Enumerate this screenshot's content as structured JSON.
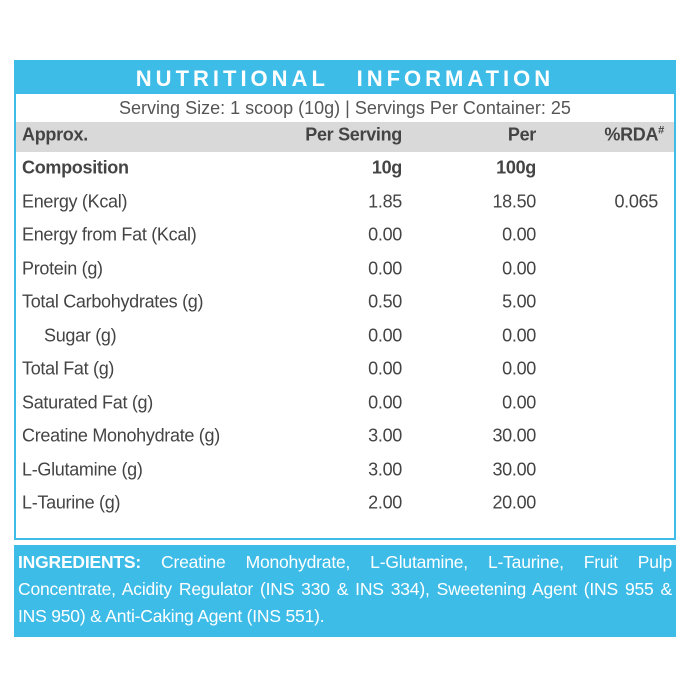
{
  "header": {
    "title": "NUTRITIONAL INFORMATION",
    "serving": "Serving Size: 1 scoop (10g) | Servings Per Container: 25"
  },
  "table": {
    "columns": [
      "Approx.",
      "Per Serving",
      "Per",
      "%RDA"
    ],
    "rda_mark": "#",
    "rows": [
      [
        "Composition",
        "10g",
        "100g"
      ],
      [
        "Energy (Kcal)",
        "1.85",
        "18.50",
        "0.065"
      ],
      [
        "Energy from Fat (Kcal)",
        "0.00",
        "0.00"
      ],
      [
        "Protein (g)",
        "0.00",
        "0.00"
      ],
      [
        "Total Carbohydrates (g)",
        "0.50",
        "5.00"
      ],
      [
        "Sugar (g)",
        "0.00",
        "0.00"
      ],
      [
        "Total Fat (g)",
        "0.00",
        "0.00"
      ],
      [
        "Saturated Fat (g)",
        "0.00",
        "0.00"
      ],
      [
        "Creatine Monohydrate (g)",
        "3.00",
        "30.00"
      ],
      [
        "L-Glutamine (g)",
        "3.00",
        "30.00"
      ],
      [
        "L-Taurine (g)",
        "2.00",
        "20.00"
      ]
    ]
  },
  "ingredients": {
    "label": "INGREDIENTS:",
    "text": "Creatine Monohydrate, L-Glutamine, L-Taurine, Fruit Pulp Concentrate, Acidity Regulator (INS 330 & INS 334), Sweetening Agent (INS 955 & INS 950) & Anti-Caking Agent (INS 551)."
  }
}
